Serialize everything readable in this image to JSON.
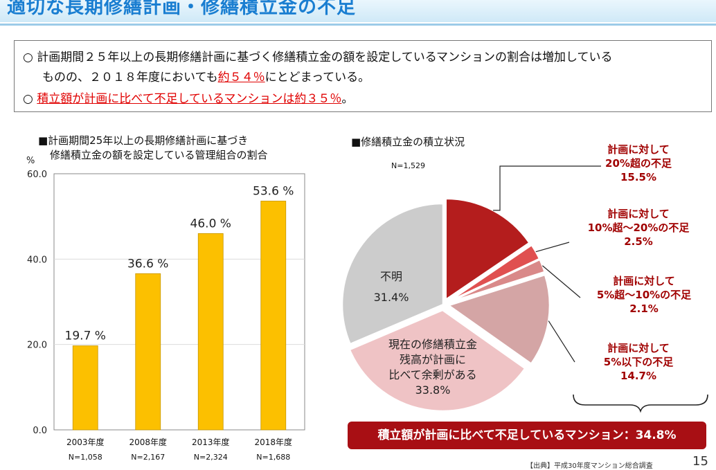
{
  "header": {
    "title": "適切な長期修繕計画・修繕積立金の不足"
  },
  "summary": {
    "bullet": "○",
    "line1": "計画期間２５年以上の長期修繕計画に基づく修繕積立金の額を設定しているマンションの割合は増加している",
    "line2_pre": "ものの、２０１８年度においても",
    "line2_red": "約５４％",
    "line2_post": "にとどまっている。",
    "line3_red": "積立額が計画に比べて不足しているマンションは約３５％",
    "line3_post": "。"
  },
  "bar_section": {
    "title_line1": "■計画期間25年以上の長期修繕計画に基づき",
    "title_line2": "修繕積立金の額を設定している管理組合の割合",
    "unit": "%"
  },
  "pie_section": {
    "title": "■修繕積立金の積立状況",
    "n": "N=1,529"
  },
  "chart_data": [
    {
      "type": "bar",
      "categories": [
        "2003年度",
        "2008年度",
        "2013年度",
        "2018年度"
      ],
      "values": [
        19.7,
        36.6,
        46.0,
        53.6
      ],
      "value_labels": [
        "19.7 %",
        "36.6 %",
        "46.0 %",
        "53.6 %"
      ],
      "n_labels": [
        "N=1,058",
        "N=2,167",
        "N=2,324",
        "N=1,688"
      ],
      "ylim": [
        0,
        60
      ],
      "yticks": [
        "0.0",
        "20.0",
        "40.0",
        "60.0"
      ],
      "ytick_values": [
        0,
        20,
        40,
        60
      ],
      "ylabel": "%",
      "grid": true,
      "bar_color": "#fcc000"
    },
    {
      "type": "pie",
      "slices": [
        {
          "label_lines": [
            "計画に対して",
            "20%超の不足",
            "15.5%"
          ],
          "value": 15.5,
          "color": "#b41d1d"
        },
        {
          "label_lines": [
            "計画に対して",
            "10%超～20%の不足",
            "2.5%"
          ],
          "value": 2.5,
          "color": "#e05050"
        },
        {
          "label_lines": [
            "計画に対して",
            "5%超～10%の不足",
            "2.1%"
          ],
          "value": 2.1,
          "color": "#d98989"
        },
        {
          "label_lines": [
            "計画に対して",
            "5%以下の不足",
            "14.7%"
          ],
          "value": 14.7,
          "color": "#d4a5a5"
        },
        {
          "label_lines": [
            "現在の修繕積立金",
            "残高が計画に",
            "比べて余剰がある",
            "33.8%"
          ],
          "value": 33.8,
          "color": "#efc3c5"
        },
        {
          "label_lines": [
            "不明",
            "31.4%"
          ],
          "value": 31.4,
          "color": "#cccccc"
        }
      ]
    }
  ],
  "total": {
    "text": "積立額が計画に比べて不足しているマンション：34.8%"
  },
  "footer": {
    "source": "【出典】平成30年度マンション総合調査",
    "page": "15"
  }
}
